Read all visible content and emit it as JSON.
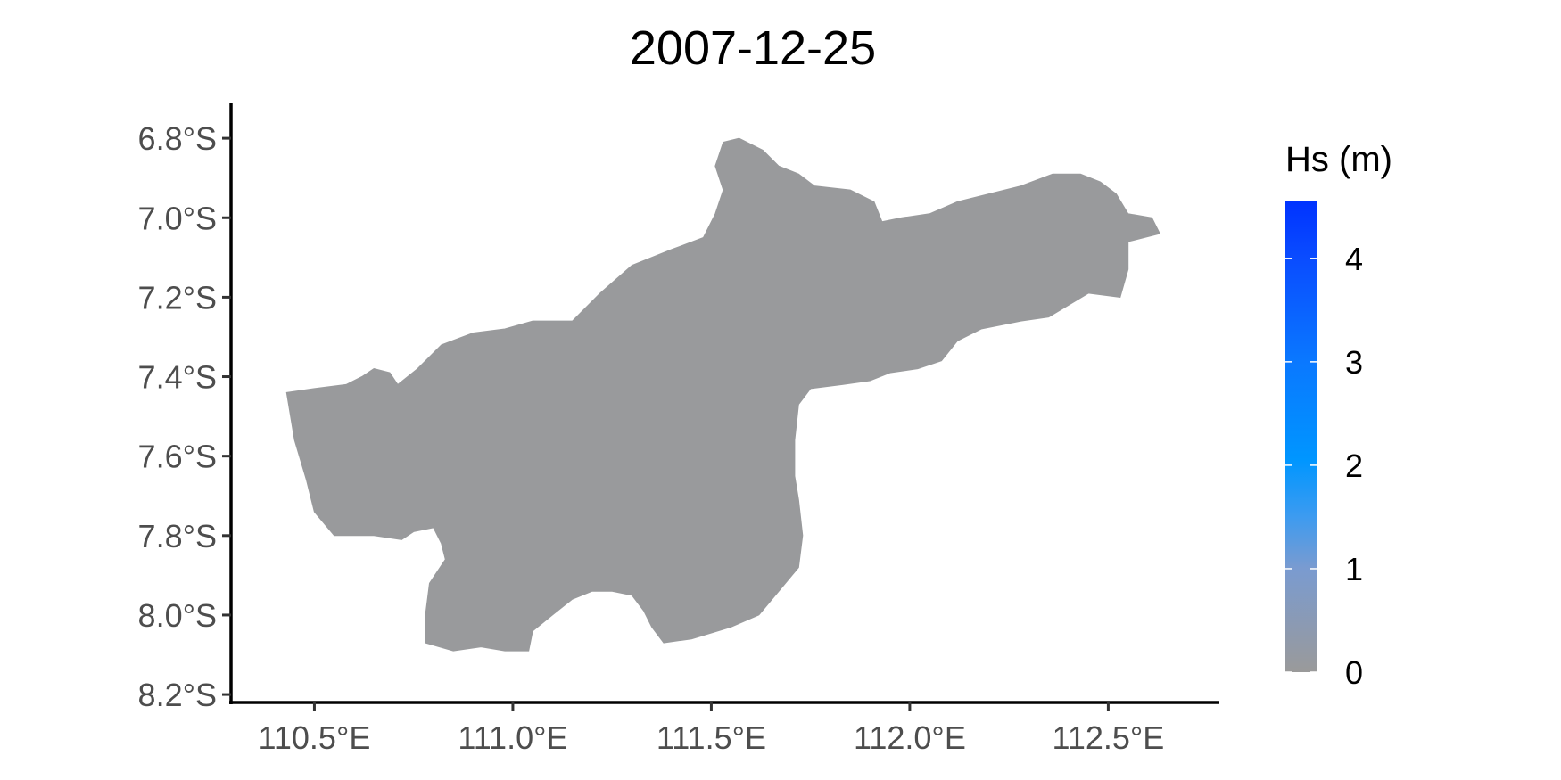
{
  "chart_data": {
    "type": "heatmap",
    "title": "2007-12-25",
    "xlabel": "",
    "ylabel": "",
    "x_ticks": [
      110.5,
      111.0,
      111.5,
      112.0,
      112.5
    ],
    "x_tick_labels": [
      "110.5°E",
      "111.0°E",
      "111.5°E",
      "112.0°E",
      "112.5°E"
    ],
    "y_ticks": [
      6.8,
      7.0,
      7.2,
      7.4,
      7.6,
      7.8,
      8.0,
      8.2
    ],
    "y_tick_labels": [
      "6.8°S",
      "7.0°S",
      "7.2°S",
      "7.4°S",
      "7.6°S",
      "7.8°S",
      "8.0°S",
      "8.2°S"
    ],
    "xlim": [
      110.29,
      112.78
    ],
    "ylim_south": [
      6.71,
      8.22
    ],
    "region_value_hs_m": 0,
    "region_fill_color": "#999a9c",
    "grid": false,
    "legend": {
      "title": "Hs (m)",
      "placement": "right",
      "range": [
        0,
        4.55
      ],
      "ticks": [
        0,
        1,
        2,
        3,
        4
      ],
      "tick_labels": [
        "0",
        "1",
        "2",
        "3",
        "4"
      ],
      "colors": [
        "#9a9a9a",
        "#7a9bd0",
        "#3d9bf0",
        "#0096ff",
        "#0a78ff",
        "#0a4cff",
        "#0033ff"
      ]
    },
    "region_outline_lonlat": [
      [
        110.43,
        7.44
      ],
      [
        110.5,
        7.43
      ],
      [
        110.58,
        7.42
      ],
      [
        110.62,
        7.4
      ],
      [
        110.65,
        7.38
      ],
      [
        110.69,
        7.39
      ],
      [
        110.71,
        7.42
      ],
      [
        110.76,
        7.38
      ],
      [
        110.82,
        7.32
      ],
      [
        110.9,
        7.29
      ],
      [
        110.98,
        7.28
      ],
      [
        111.05,
        7.26
      ],
      [
        111.15,
        7.26
      ],
      [
        111.22,
        7.19
      ],
      [
        111.3,
        7.12
      ],
      [
        111.4,
        7.08
      ],
      [
        111.48,
        7.05
      ],
      [
        111.51,
        6.99
      ],
      [
        111.53,
        6.93
      ],
      [
        111.51,
        6.87
      ],
      [
        111.53,
        6.81
      ],
      [
        111.57,
        6.8
      ],
      [
        111.63,
        6.83
      ],
      [
        111.67,
        6.87
      ],
      [
        111.72,
        6.89
      ],
      [
        111.76,
        6.92
      ],
      [
        111.85,
        6.93
      ],
      [
        111.91,
        6.96
      ],
      [
        111.93,
        7.01
      ],
      [
        111.98,
        7.0
      ],
      [
        112.05,
        6.99
      ],
      [
        112.12,
        6.96
      ],
      [
        112.2,
        6.94
      ],
      [
        112.28,
        6.92
      ],
      [
        112.36,
        6.89
      ],
      [
        112.43,
        6.89
      ],
      [
        112.48,
        6.91
      ],
      [
        112.52,
        6.94
      ],
      [
        112.55,
        6.99
      ],
      [
        112.61,
        7.0
      ],
      [
        112.63,
        7.04
      ],
      [
        112.55,
        7.06
      ],
      [
        112.55,
        7.13
      ],
      [
        112.53,
        7.2
      ],
      [
        112.45,
        7.19
      ],
      [
        112.4,
        7.22
      ],
      [
        112.35,
        7.25
      ],
      [
        112.28,
        7.26
      ],
      [
        112.18,
        7.28
      ],
      [
        112.12,
        7.31
      ],
      [
        112.08,
        7.36
      ],
      [
        112.02,
        7.38
      ],
      [
        111.95,
        7.39
      ],
      [
        111.9,
        7.41
      ],
      [
        111.83,
        7.42
      ],
      [
        111.75,
        7.43
      ],
      [
        111.72,
        7.47
      ],
      [
        111.71,
        7.56
      ],
      [
        111.71,
        7.65
      ],
      [
        111.72,
        7.71
      ],
      [
        111.73,
        7.8
      ],
      [
        111.72,
        7.88
      ],
      [
        111.67,
        7.94
      ],
      [
        111.62,
        8.0
      ],
      [
        111.55,
        8.03
      ],
      [
        111.45,
        8.06
      ],
      [
        111.38,
        8.07
      ],
      [
        111.35,
        8.03
      ],
      [
        111.33,
        7.99
      ],
      [
        111.3,
        7.95
      ],
      [
        111.25,
        7.94
      ],
      [
        111.2,
        7.94
      ],
      [
        111.15,
        7.96
      ],
      [
        111.1,
        8.0
      ],
      [
        111.05,
        8.04
      ],
      [
        111.04,
        8.09
      ],
      [
        110.98,
        8.09
      ],
      [
        110.92,
        8.08
      ],
      [
        110.85,
        8.09
      ],
      [
        110.78,
        8.07
      ],
      [
        110.78,
        8.0
      ],
      [
        110.79,
        7.92
      ],
      [
        110.83,
        7.86
      ],
      [
        110.82,
        7.82
      ],
      [
        110.8,
        7.78
      ],
      [
        110.75,
        7.79
      ],
      [
        110.72,
        7.81
      ],
      [
        110.65,
        7.8
      ],
      [
        110.55,
        7.8
      ],
      [
        110.5,
        7.74
      ],
      [
        110.48,
        7.66
      ],
      [
        110.45,
        7.56
      ],
      [
        110.43,
        7.44
      ]
    ]
  }
}
